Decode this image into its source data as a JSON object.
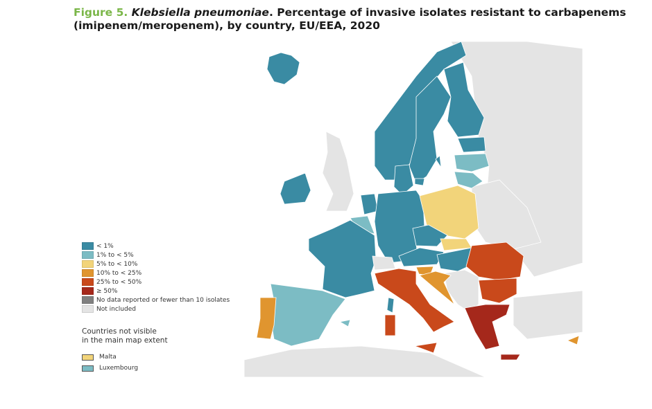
{
  "title": {
    "figure": "Figure 5.",
    "species": "Klebsiella pneumoniae",
    "rest": ". Percentage of invasive isolates resistant to carbapenems",
    "line2": "(imipenem/meropenem), by country, EU/EEA, 2020"
  },
  "legend": [
    {
      "label": "< 1%",
      "color": "#3a8ba3"
    },
    {
      "label": "1% to < 5%",
      "color": "#7cbcc4"
    },
    {
      "label": "5% to < 10%",
      "color": "#f2d47a"
    },
    {
      "label": "10% to < 25%",
      "color": "#e0952f"
    },
    {
      "label": "25% to < 50%",
      "color": "#c9491b"
    },
    {
      "label": "≥ 50%",
      "color": "#a5281b"
    },
    {
      "label": "No data reported or fewer than 10 isolates",
      "color": "#808080"
    },
    {
      "label": "Not included",
      "color": "#e4e4e4"
    }
  ],
  "extent": {
    "heading1": "Countries not visible",
    "heading2": "in the main map extent",
    "items": [
      {
        "label": "Malta",
        "category": 2
      },
      {
        "label": "Luxembourg",
        "category": 1
      }
    ]
  },
  "countries": {
    "iceland": 0,
    "norway": 0,
    "sweden": 0,
    "finland": 0,
    "estonia": 0,
    "latvia": 1,
    "lithuania": 1,
    "denmark": 0,
    "ireland": 0,
    "netherlands": 0,
    "belgium": 1,
    "germany": 0,
    "poland": 2,
    "czechia": 0,
    "slovakia": 2,
    "austria": 0,
    "hungary": 0,
    "slovenia": 3,
    "croatia": 3,
    "france": 0,
    "spain": 1,
    "portugal": 3,
    "italy": 4,
    "romania": 4,
    "bulgaria": 4,
    "greece": 5,
    "cyprus": 3,
    "switzerland": 7,
    "uk": 7
  }
}
